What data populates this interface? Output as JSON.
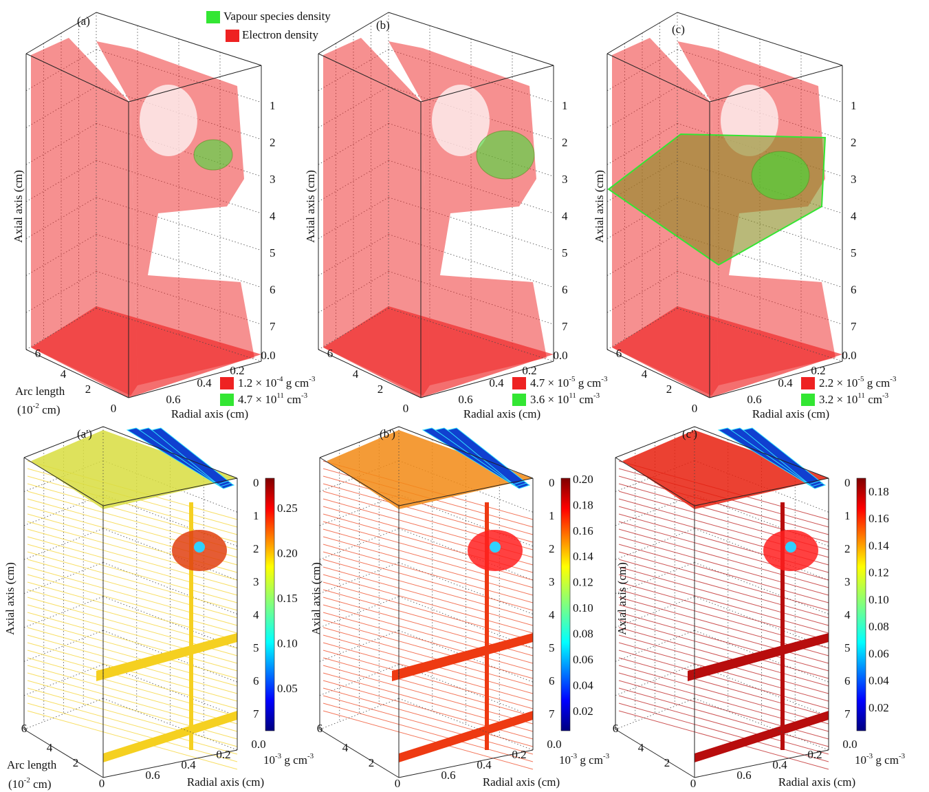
{
  "legend": {
    "items": [
      {
        "label": "Vapour species density",
        "color": "#33e633"
      },
      {
        "label": "Electron density",
        "color": "#ee2222"
      }
    ]
  },
  "panels": [
    {
      "label": "(a)",
      "axial_axis": "Axial axis (cm)",
      "axial_ticks": [
        "1",
        "2",
        "3",
        "4",
        "5",
        "6",
        "7"
      ],
      "radial_axis": "Radial axis (cm)",
      "radial_ticks": [
        "0.0",
        "0.2",
        "0.4",
        "0.6"
      ],
      "arc_ticks": [
        "6",
        "4",
        "2",
        "0"
      ],
      "arc_axis": "Arc length",
      "arc_unit": [
        "(10",
        "-2",
        " cm)"
      ],
      "isosurfaces": [
        {
          "mantissa": "1.2 × 10",
          "exponent": "-4",
          "unit": " g cm",
          "unit_exponent": "-3"
        },
        {
          "mantissa": "4.7 × 10",
          "exponent": "11",
          "unit": " cm",
          "unit_exponent": "-3"
        }
      ]
    },
    {
      "label": "(b)",
      "axial_axis": "Axial axis (cm)",
      "axial_ticks": [
        "1",
        "2",
        "3",
        "4",
        "5",
        "6",
        "7"
      ],
      "radial_axis": "Radial axis (cm)",
      "radial_ticks": [
        "0.0",
        "0.2",
        "0.4",
        "0.6"
      ],
      "arc_ticks": [
        "6",
        "4",
        "2",
        "0"
      ],
      "isosurfaces": [
        {
          "mantissa": "4.7 × 10",
          "exponent": "-5",
          "unit": " g cm",
          "unit_exponent": "-3"
        },
        {
          "mantissa": "3.6 × 10",
          "exponent": "11",
          "unit": " cm",
          "unit_exponent": "-3"
        }
      ]
    },
    {
      "label": "(c)",
      "axial_axis": "Axial axis (cm)",
      "axial_ticks": [
        "1",
        "2",
        "3",
        "4",
        "5",
        "6",
        "7"
      ],
      "radial_axis": "Radial axis (cm)",
      "radial_ticks": [
        "0.0",
        "0.2",
        "0.4",
        "0.6"
      ],
      "arc_ticks": [
        "6",
        "4",
        "2",
        "0"
      ],
      "isosurfaces": [
        {
          "mantissa": "2.2 × 10",
          "exponent": "-5",
          "unit": " g cm",
          "unit_exponent": "-3"
        },
        {
          "mantissa": "3.2 × 10",
          "exponent": "11",
          "unit": " cm",
          "unit_exponent": "-3"
        }
      ]
    },
    {
      "label": "(a')",
      "axial_axis": "Axial axis (cm)",
      "axial_ticks": [
        "0",
        "1",
        "2",
        "3",
        "4",
        "5",
        "6",
        "7"
      ],
      "radial_axis": "Radial axis (cm)",
      "radial_ticks": [
        "0.0",
        "0.2",
        "0.4",
        "0.6"
      ],
      "arc_ticks": [
        "6",
        "4",
        "2",
        "0"
      ],
      "arc_axis": "Arc length",
      "arc_unit": [
        "(10",
        "-2",
        " cm)"
      ],
      "colorbar_ticks": [
        "0.25",
        "0.20",
        "0.15",
        "0.10",
        "0.05"
      ],
      "colorbar_unit": [
        "10",
        "-3",
        " g cm",
        "-3"
      ]
    },
    {
      "label": "(b')",
      "axial_axis": "Axial axis (cm)",
      "axial_ticks": [
        "0",
        "1",
        "2",
        "3",
        "4",
        "5",
        "6",
        "7"
      ],
      "radial_axis": "Radial axis (cm)",
      "radial_ticks": [
        "0.0",
        "0.2",
        "0.4",
        "0.6"
      ],
      "arc_ticks": [
        "6",
        "4",
        "2",
        "0"
      ],
      "colorbar_ticks": [
        "0.20",
        "0.18",
        "0.16",
        "0.14",
        "0.12",
        "0.10",
        "0.08",
        "0.06",
        "0.04",
        "0.02"
      ],
      "colorbar_unit": [
        "10",
        "-3",
        " g cm",
        "-3"
      ]
    },
    {
      "label": "(c')",
      "axial_axis": "Axial axis (cm)",
      "axial_ticks": [
        "0",
        "1",
        "2",
        "3",
        "4",
        "5",
        "6",
        "7"
      ],
      "radial_axis": "Radial axis (cm)",
      "radial_ticks": [
        "0.0",
        "0.2",
        "0.4",
        "0.6"
      ],
      "arc_ticks": [
        "6",
        "4",
        "2",
        "0"
      ],
      "colorbar_ticks": [
        "0.18",
        "0.16",
        "0.14",
        "0.12",
        "0.10",
        "0.08",
        "0.06",
        "0.04",
        "0.02"
      ],
      "colorbar_unit": [
        "10",
        "-3",
        " g cm",
        "-3"
      ]
    }
  ]
}
